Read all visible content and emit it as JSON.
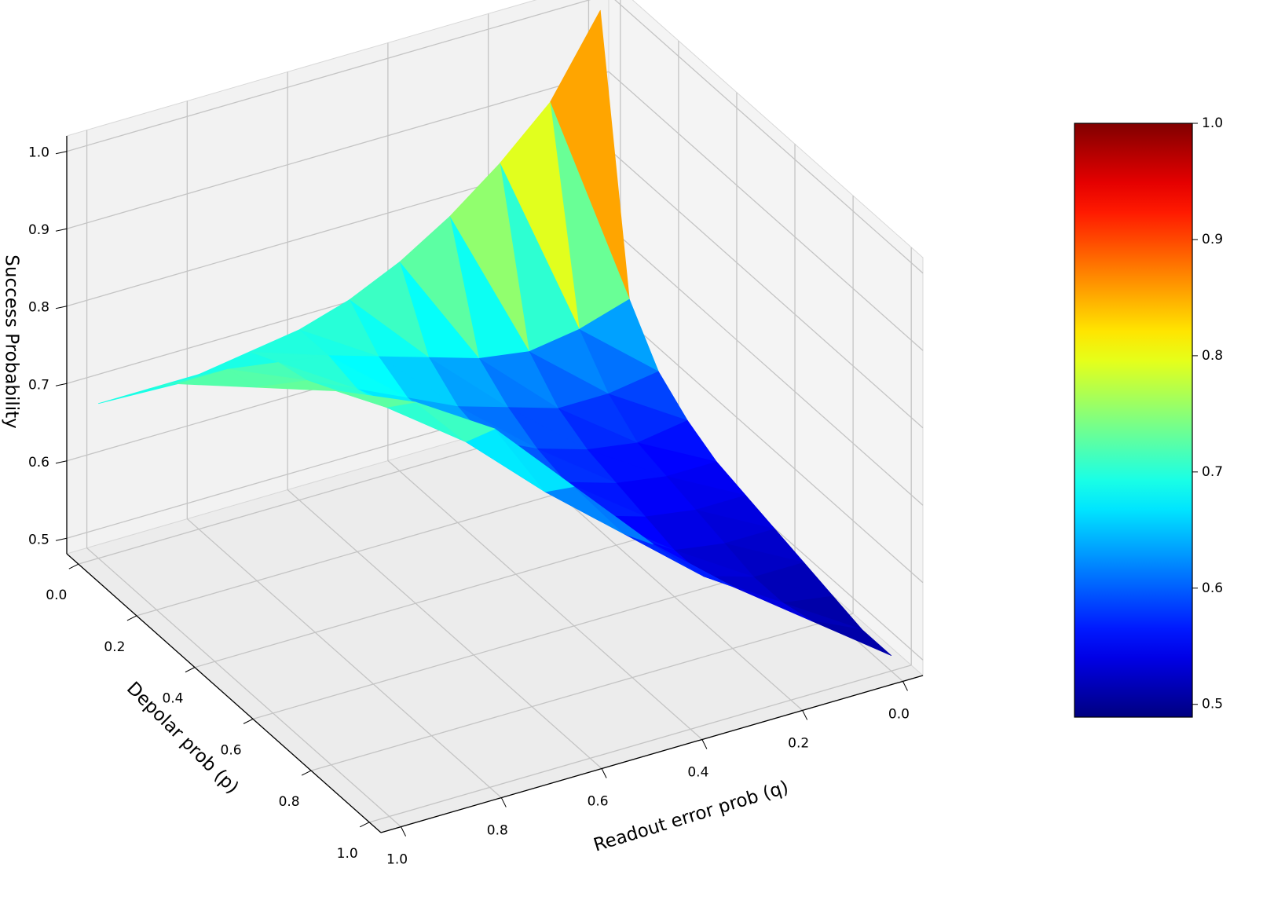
{
  "chart_data": {
    "type": "surface",
    "xlabel": "Depolar prob (p)",
    "ylabel": "Readout error prob (q)",
    "zlabel": "Success Probability",
    "x": [
      0,
      0.1,
      0.2,
      0.3,
      0.4,
      0.5,
      0.6,
      0.7,
      0.8,
      0.9,
      1
    ],
    "y": [
      0,
      0.1,
      0.2,
      0.3,
      0.4,
      0.5,
      0.6,
      0.7,
      0.8,
      0.9,
      1
    ],
    "z": [
      [
        1.0,
        0.9,
        0.84,
        0.79,
        0.75,
        0.72,
        0.7,
        0.69,
        0.68,
        0.68,
        0.68
      ],
      [
        0.66,
        0.64,
        0.63,
        0.64,
        0.66,
        0.68,
        0.7,
        0.71,
        0.72,
        0.72,
        null
      ],
      [
        0.6,
        0.59,
        0.59,
        0.61,
        0.63,
        0.66,
        0.69,
        0.72,
        0.73,
        null,
        null
      ],
      [
        0.57,
        0.56,
        0.57,
        0.59,
        0.62,
        0.66,
        0.7,
        0.74,
        null,
        null,
        null
      ],
      [
        0.55,
        0.55,
        0.56,
        0.58,
        0.62,
        0.67,
        0.74,
        null,
        null,
        null,
        null
      ],
      [
        0.54,
        0.54,
        0.55,
        0.57,
        0.62,
        0.72,
        null,
        null,
        null,
        null,
        null
      ],
      [
        0.53,
        0.53,
        0.54,
        0.58,
        0.66,
        null,
        null,
        null,
        null,
        null,
        null
      ],
      [
        0.52,
        0.52,
        0.54,
        0.6,
        null,
        null,
        null,
        null,
        null,
        null,
        null
      ],
      [
        0.51,
        0.52,
        0.56,
        null,
        null,
        null,
        null,
        null,
        null,
        null,
        null
      ],
      [
        0.5,
        0.53,
        null,
        null,
        null,
        null,
        null,
        null,
        null,
        null,
        null
      ],
      [
        0.5,
        null,
        null,
        null,
        null,
        null,
        null,
        null,
        null,
        null,
        null
      ]
    ],
    "xlim": [
      -0.04,
      1.04
    ],
    "ylim": [
      -0.04,
      1.04
    ],
    "zlim": [
      0.48,
      1.02
    ],
    "xticks": [
      {
        "value": 0,
        "label": "0.0"
      },
      0.2,
      0.4,
      0.6,
      0.8,
      {
        "value": 1,
        "label": "1.0"
      }
    ],
    "yticks": [
      {
        "value": 0,
        "label": "0.0"
      },
      0.2,
      0.4,
      0.6,
      0.8,
      {
        "value": 1,
        "label": "1.0"
      }
    ],
    "zticks": [
      0.5,
      0.6,
      0.7,
      0.8,
      0.9,
      {
        "value": 1,
        "label": "1.0"
      }
    ],
    "colormap": "jet",
    "grid": true,
    "colorbar": {
      "clim": [
        0.489,
        1.0
      ],
      "ticks": [
        0.5,
        0.6,
        0.7,
        0.8,
        0.9,
        {
          "value": 1,
          "label": "1.0"
        }
      ]
    }
  }
}
